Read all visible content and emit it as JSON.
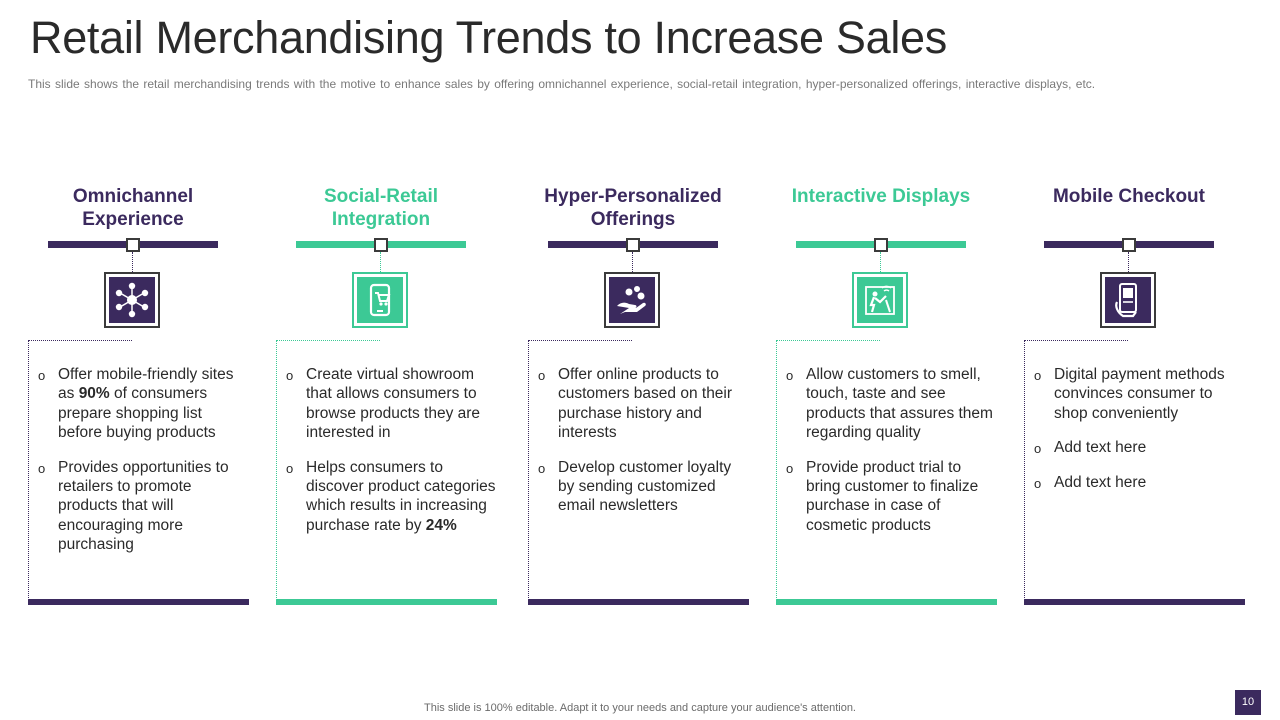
{
  "title": "Retail Merchandising Trends to Increase Sales",
  "subtitle": "This slide shows the retail merchandising trends with the motive to enhance sales by offering omnichannel experience, social-retail integration, hyper-personalized offerings, interactive displays, etc.",
  "columns": [
    {
      "heading": "Omnichannel Experience",
      "icon": "network-hub-icon",
      "bullets": [
        {
          "pre": "Offer mobile-friendly sites as ",
          "bold": "90%",
          "post": " of consumers prepare shopping list before buying products"
        },
        {
          "pre": "Provides opportunities to retailers to promote products that will encouraging more purchasing",
          "bold": "",
          "post": ""
        }
      ]
    },
    {
      "heading": "Social-Retail Integration",
      "icon": "mobile-shopping-icon",
      "bullets": [
        {
          "pre": "Create virtual showroom that allows consumers to browse products they are interested in",
          "bold": "",
          "post": ""
        },
        {
          "pre": "Helps consumers to discover product categories which results in increasing purchase rate by ",
          "bold": "24%",
          "post": ""
        }
      ]
    },
    {
      "heading": "Hyper-Personalized Offerings",
      "icon": "hand-offering-icon",
      "bullets": [
        {
          "pre": "Offer online products to customers based on their purchase history and interests",
          "bold": "",
          "post": ""
        },
        {
          "pre": "Develop customer loyalty by sending customized email newsletters",
          "bold": "",
          "post": ""
        }
      ]
    },
    {
      "heading": "Interactive Displays",
      "icon": "interactive-display-icon",
      "bullets": [
        {
          "pre": "Allow customers to smell, touch, taste and see products that assures them regarding quality",
          "bold": "",
          "post": ""
        },
        {
          "pre": "Provide product trial to bring customer to finalize purchase in case of cosmetic products",
          "bold": "",
          "post": ""
        }
      ]
    },
    {
      "heading": "Mobile Checkout",
      "icon": "phone-checkout-icon",
      "bullets": [
        {
          "pre": "Digital payment methods convinces consumer to shop conveniently",
          "bold": "",
          "post": ""
        },
        {
          "pre": "Add text here",
          "bold": "",
          "post": ""
        },
        {
          "pre": "Add text here",
          "bold": "",
          "post": ""
        }
      ]
    }
  ],
  "colors": {
    "purple": "#3b2a5e",
    "green": "#3cc995"
  },
  "footer": "This slide is 100% editable. Adapt it to your needs and capture your audience's attention.",
  "page_number": "10"
}
